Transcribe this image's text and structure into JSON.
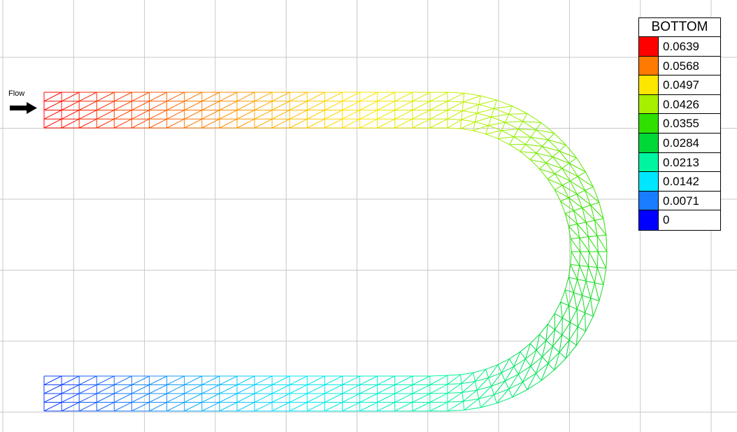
{
  "flow_label": "Flow",
  "legend": {
    "title": "BOTTOM",
    "entries": [
      {
        "value": "0.0639",
        "color": "#ff0000"
      },
      {
        "value": "0.0568",
        "color": "#ff7a00"
      },
      {
        "value": "0.0497",
        "color": "#ffe600"
      },
      {
        "value": "0.0426",
        "color": "#a6f000"
      },
      {
        "value": "0.0355",
        "color": "#2fe000"
      },
      {
        "value": "0.0284",
        "color": "#00d838"
      },
      {
        "value": "0.0213",
        "color": "#00f5a0"
      },
      {
        "value": "0.0142",
        "color": "#00e6ff"
      },
      {
        "value": "0.0071",
        "color": "#1a7dff"
      },
      {
        "value": "0",
        "color": "#0000ff"
      }
    ]
  }
}
